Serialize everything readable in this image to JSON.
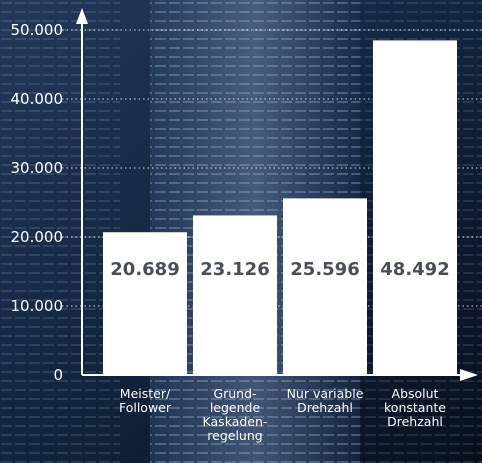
{
  "chart_data": {
    "type": "bar",
    "categories": [
      [
        "Meister/",
        "Follower"
      ],
      [
        "Grund-",
        "legende",
        "Kaskaden-",
        "regelung"
      ],
      [
        "Nur variable",
        "Drehzahl"
      ],
      [
        "Absolut",
        "konstante",
        "Drehzahl"
      ]
    ],
    "values": [
      20689,
      23126,
      25596,
      48492
    ],
    "value_labels": [
      "20.689",
      "23.126",
      "25.596",
      "48.492"
    ],
    "ylim": [
      0,
      50000
    ],
    "yticks": [
      0,
      10000,
      20000,
      30000,
      40000,
      50000
    ],
    "ytick_labels": [
      "0",
      "10.000",
      "20.000",
      "30.000",
      "40.000",
      "50.000"
    ],
    "grid": "dotted horizontal",
    "title": "",
    "xlabel": "",
    "ylabel": "",
    "colors": {
      "bar": "#ffffff",
      "axis": "#ffffff",
      "value_text": "#4a4f57",
      "background": "#0f1d33"
    }
  }
}
